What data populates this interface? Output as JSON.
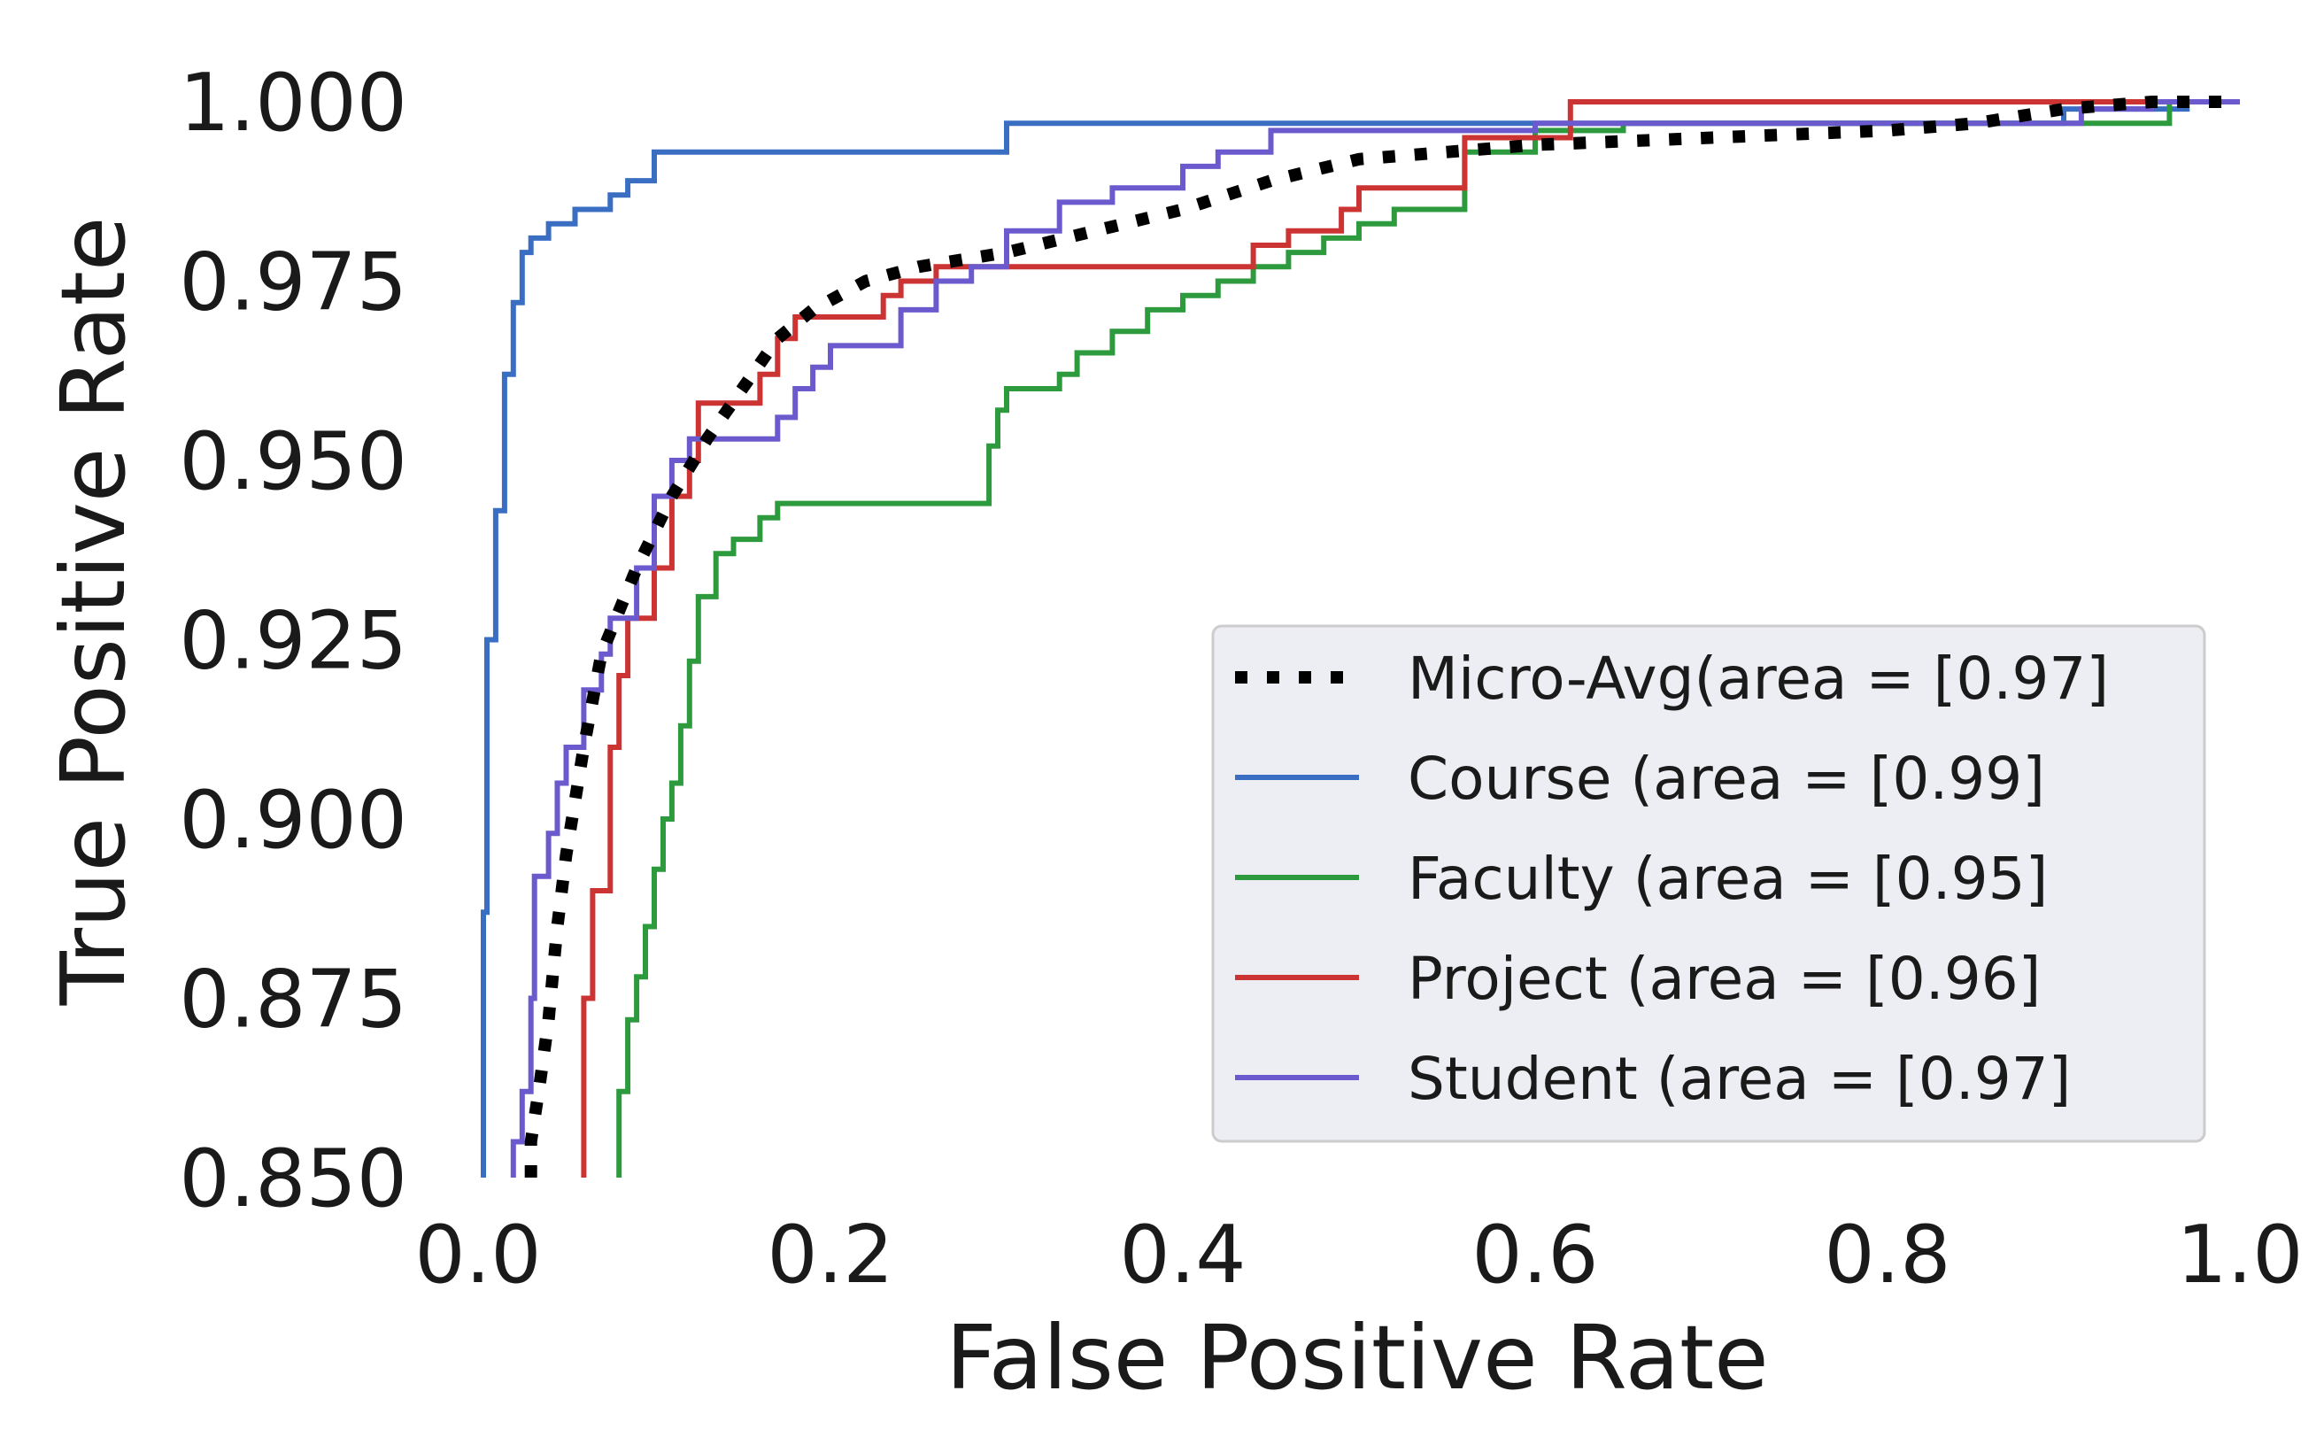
{
  "chart_data": {
    "type": "line",
    "title": "",
    "xlabel": "False Positive Rate",
    "ylabel": "True Positive Rate",
    "xlim": [
      0.0,
      1.0
    ],
    "ylim": [
      0.85,
      1.0
    ],
    "xticks": [
      0.0,
      0.2,
      0.4,
      0.6,
      0.8,
      1.0
    ],
    "xtick_labels": [
      "0.0",
      "0.2",
      "0.4",
      "0.6",
      "0.8",
      "1.0"
    ],
    "yticks": [
      0.85,
      0.875,
      0.9,
      0.925,
      0.95,
      0.975,
      1.0
    ],
    "ytick_labels": [
      "0.850",
      "0.875",
      "0.900",
      "0.925",
      "0.950",
      "0.975",
      "1.000"
    ],
    "grid": false,
    "legend_position": "lower-right",
    "series": [
      {
        "name": "Micro-Avg(area = [0.97]",
        "color": "#000000",
        "style": "dotted",
        "points": [
          [
            0.03,
            0.85
          ],
          [
            0.03,
            0.855
          ],
          [
            0.035,
            0.863
          ],
          [
            0.04,
            0.872
          ],
          [
            0.045,
            0.885
          ],
          [
            0.05,
            0.895
          ],
          [
            0.06,
            0.91
          ],
          [
            0.07,
            0.923
          ],
          [
            0.09,
            0.935
          ],
          [
            0.11,
            0.945
          ],
          [
            0.13,
            0.953
          ],
          [
            0.15,
            0.96
          ],
          [
            0.17,
            0.967
          ],
          [
            0.19,
            0.971
          ],
          [
            0.22,
            0.975
          ],
          [
            0.25,
            0.977
          ],
          [
            0.3,
            0.979
          ],
          [
            0.35,
            0.982
          ],
          [
            0.4,
            0.985
          ],
          [
            0.45,
            0.989
          ],
          [
            0.5,
            0.992
          ],
          [
            0.55,
            0.993
          ],
          [
            0.6,
            0.994
          ],
          [
            0.7,
            0.995
          ],
          [
            0.8,
            0.996
          ],
          [
            0.85,
            0.997
          ],
          [
            0.9,
            0.999
          ],
          [
            0.95,
            1.0
          ],
          [
            1.0,
            1.0
          ]
        ]
      },
      {
        "name": "Course (area = [0.99]",
        "color": "#3a6ec2",
        "style": "solid",
        "points": [
          [
            0.003,
            0.85
          ],
          [
            0.003,
            0.887
          ],
          [
            0.005,
            0.887
          ],
          [
            0.005,
            0.925
          ],
          [
            0.01,
            0.925
          ],
          [
            0.01,
            0.943
          ],
          [
            0.015,
            0.943
          ],
          [
            0.015,
            0.962
          ],
          [
            0.02,
            0.962
          ],
          [
            0.02,
            0.972
          ],
          [
            0.025,
            0.972
          ],
          [
            0.025,
            0.979
          ],
          [
            0.03,
            0.979
          ],
          [
            0.03,
            0.981
          ],
          [
            0.04,
            0.981
          ],
          [
            0.04,
            0.983
          ],
          [
            0.055,
            0.983
          ],
          [
            0.055,
            0.985
          ],
          [
            0.075,
            0.985
          ],
          [
            0.075,
            0.987
          ],
          [
            0.085,
            0.987
          ],
          [
            0.085,
            0.989
          ],
          [
            0.1,
            0.989
          ],
          [
            0.1,
            0.993
          ],
          [
            0.3,
            0.993
          ],
          [
            0.3,
            0.997
          ],
          [
            0.9,
            0.997
          ],
          [
            0.9,
            0.999
          ],
          [
            0.97,
            0.999
          ],
          [
            0.97,
            1.0
          ],
          [
            1.0,
            1.0
          ]
        ]
      },
      {
        "name": "Faculty (area = [0.95]",
        "color": "#2e9a3e",
        "style": "solid",
        "points": [
          [
            0.08,
            0.85
          ],
          [
            0.08,
            0.862
          ],
          [
            0.085,
            0.862
          ],
          [
            0.085,
            0.872
          ],
          [
            0.09,
            0.872
          ],
          [
            0.09,
            0.878
          ],
          [
            0.095,
            0.878
          ],
          [
            0.095,
            0.885
          ],
          [
            0.1,
            0.885
          ],
          [
            0.1,
            0.893
          ],
          [
            0.105,
            0.893
          ],
          [
            0.105,
            0.9
          ],
          [
            0.11,
            0.9
          ],
          [
            0.11,
            0.905
          ],
          [
            0.115,
            0.905
          ],
          [
            0.115,
            0.913
          ],
          [
            0.12,
            0.913
          ],
          [
            0.12,
            0.922
          ],
          [
            0.125,
            0.922
          ],
          [
            0.125,
            0.931
          ],
          [
            0.135,
            0.931
          ],
          [
            0.135,
            0.937
          ],
          [
            0.145,
            0.937
          ],
          [
            0.145,
            0.939
          ],
          [
            0.16,
            0.939
          ],
          [
            0.16,
            0.942
          ],
          [
            0.17,
            0.942
          ],
          [
            0.17,
            0.944
          ],
          [
            0.29,
            0.944
          ],
          [
            0.29,
            0.952
          ],
          [
            0.295,
            0.952
          ],
          [
            0.295,
            0.957
          ],
          [
            0.3,
            0.957
          ],
          [
            0.3,
            0.96
          ],
          [
            0.33,
            0.96
          ],
          [
            0.33,
            0.962
          ],
          [
            0.34,
            0.962
          ],
          [
            0.34,
            0.965
          ],
          [
            0.36,
            0.965
          ],
          [
            0.36,
            0.968
          ],
          [
            0.38,
            0.968
          ],
          [
            0.38,
            0.971
          ],
          [
            0.4,
            0.971
          ],
          [
            0.4,
            0.973
          ],
          [
            0.42,
            0.973
          ],
          [
            0.42,
            0.975
          ],
          [
            0.44,
            0.975
          ],
          [
            0.44,
            0.977
          ],
          [
            0.46,
            0.977
          ],
          [
            0.46,
            0.979
          ],
          [
            0.48,
            0.979
          ],
          [
            0.48,
            0.981
          ],
          [
            0.5,
            0.981
          ],
          [
            0.5,
            0.983
          ],
          [
            0.52,
            0.983
          ],
          [
            0.52,
            0.985
          ],
          [
            0.56,
            0.985
          ],
          [
            0.56,
            0.993
          ],
          [
            0.6,
            0.993
          ],
          [
            0.6,
            0.996
          ],
          [
            0.65,
            0.996
          ],
          [
            0.65,
            0.997
          ],
          [
            0.96,
            0.997
          ],
          [
            0.96,
            1.0
          ],
          [
            1.0,
            1.0
          ]
        ]
      },
      {
        "name": "Project (area = [0.96]",
        "color": "#cc3333",
        "style": "solid",
        "points": [
          [
            0.06,
            0.85
          ],
          [
            0.06,
            0.875
          ],
          [
            0.065,
            0.875
          ],
          [
            0.065,
            0.89
          ],
          [
            0.075,
            0.89
          ],
          [
            0.075,
            0.91
          ],
          [
            0.08,
            0.91
          ],
          [
            0.08,
            0.92
          ],
          [
            0.085,
            0.92
          ],
          [
            0.085,
            0.928
          ],
          [
            0.1,
            0.928
          ],
          [
            0.1,
            0.935
          ],
          [
            0.11,
            0.935
          ],
          [
            0.11,
            0.945
          ],
          [
            0.12,
            0.945
          ],
          [
            0.12,
            0.95
          ],
          [
            0.125,
            0.95
          ],
          [
            0.125,
            0.958
          ],
          [
            0.16,
            0.958
          ],
          [
            0.16,
            0.962
          ],
          [
            0.17,
            0.962
          ],
          [
            0.17,
            0.967
          ],
          [
            0.18,
            0.967
          ],
          [
            0.18,
            0.97
          ],
          [
            0.23,
            0.97
          ],
          [
            0.23,
            0.973
          ],
          [
            0.24,
            0.973
          ],
          [
            0.24,
            0.975
          ],
          [
            0.26,
            0.975
          ],
          [
            0.26,
            0.977
          ],
          [
            0.44,
            0.977
          ],
          [
            0.44,
            0.98
          ],
          [
            0.46,
            0.98
          ],
          [
            0.46,
            0.982
          ],
          [
            0.49,
            0.982
          ],
          [
            0.49,
            0.985
          ],
          [
            0.5,
            0.985
          ],
          [
            0.5,
            0.988
          ],
          [
            0.56,
            0.988
          ],
          [
            0.56,
            0.995
          ],
          [
            0.62,
            0.995
          ],
          [
            0.62,
            1.0
          ],
          [
            1.0,
            1.0
          ]
        ]
      },
      {
        "name": "Student (area = [0.97]",
        "color": "#6a5acd",
        "style": "solid",
        "points": [
          [
            0.02,
            0.85
          ],
          [
            0.02,
            0.855
          ],
          [
            0.025,
            0.855
          ],
          [
            0.025,
            0.862
          ],
          [
            0.03,
            0.862
          ],
          [
            0.03,
            0.875
          ],
          [
            0.032,
            0.875
          ],
          [
            0.032,
            0.892
          ],
          [
            0.04,
            0.892
          ],
          [
            0.04,
            0.898
          ],
          [
            0.045,
            0.898
          ],
          [
            0.045,
            0.905
          ],
          [
            0.05,
            0.905
          ],
          [
            0.05,
            0.91
          ],
          [
            0.06,
            0.91
          ],
          [
            0.06,
            0.918
          ],
          [
            0.07,
            0.918
          ],
          [
            0.07,
            0.923
          ],
          [
            0.075,
            0.923
          ],
          [
            0.075,
            0.928
          ],
          [
            0.09,
            0.928
          ],
          [
            0.09,
            0.935
          ],
          [
            0.1,
            0.935
          ],
          [
            0.1,
            0.945
          ],
          [
            0.11,
            0.945
          ],
          [
            0.11,
            0.95
          ],
          [
            0.12,
            0.95
          ],
          [
            0.12,
            0.953
          ],
          [
            0.17,
            0.953
          ],
          [
            0.17,
            0.956
          ],
          [
            0.18,
            0.956
          ],
          [
            0.18,
            0.96
          ],
          [
            0.19,
            0.96
          ],
          [
            0.19,
            0.963
          ],
          [
            0.2,
            0.963
          ],
          [
            0.2,
            0.966
          ],
          [
            0.24,
            0.966
          ],
          [
            0.24,
            0.971
          ],
          [
            0.26,
            0.971
          ],
          [
            0.26,
            0.975
          ],
          [
            0.28,
            0.975
          ],
          [
            0.28,
            0.977
          ],
          [
            0.3,
            0.977
          ],
          [
            0.3,
            0.982
          ],
          [
            0.33,
            0.982
          ],
          [
            0.33,
            0.986
          ],
          [
            0.36,
            0.986
          ],
          [
            0.36,
            0.988
          ],
          [
            0.4,
            0.988
          ],
          [
            0.4,
            0.991
          ],
          [
            0.42,
            0.991
          ],
          [
            0.42,
            0.993
          ],
          [
            0.45,
            0.993
          ],
          [
            0.45,
            0.996
          ],
          [
            0.6,
            0.996
          ],
          [
            0.6,
            0.997
          ],
          [
            0.91,
            0.997
          ],
          [
            0.91,
            0.999
          ],
          [
            0.95,
            0.999
          ],
          [
            0.95,
            1.0
          ],
          [
            1.0,
            1.0
          ]
        ]
      }
    ]
  }
}
